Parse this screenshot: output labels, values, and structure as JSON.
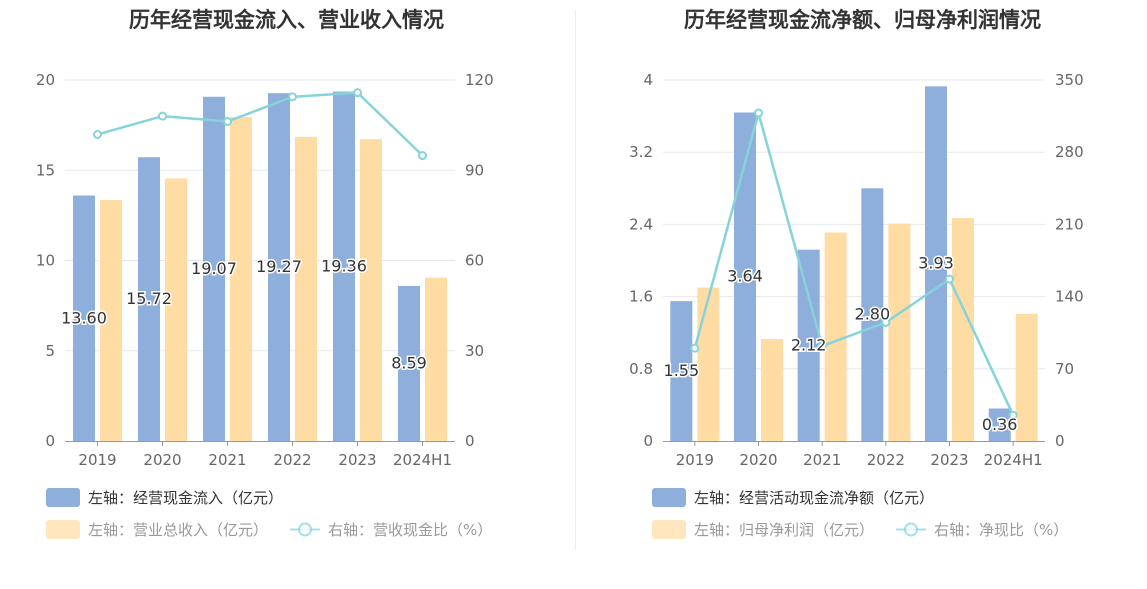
{
  "colors": {
    "bar_blue": "#8EAEDC",
    "bar_orange": "#FFDCA3",
    "line": "#86D3D9",
    "grid": "#E6E8EF",
    "axis_text": "#666666"
  },
  "charts": [
    {
      "title": "历年经营现金流入、营业收入情况",
      "legend": [
        {
          "label": "左轴：经营现金流入（亿元）",
          "faded": false
        },
        {
          "label": "左轴：营业总收入（亿元）",
          "faded": true
        },
        {
          "label": "右轴：营收现金比（%）",
          "faded": true
        }
      ]
    },
    {
      "title": "历年经营现金流净额、归母净利润情况",
      "legend": [
        {
          "label": "左轴：经营活动现金流净额（亿元）",
          "faded": false
        },
        {
          "label": "左轴：归母净利润（亿元）",
          "faded": true
        },
        {
          "label": "右轴：净现比（%）",
          "faded": true
        }
      ]
    }
  ],
  "chart_data": [
    {
      "type": "bar",
      "title": "历年经营现金流入、营业收入情况",
      "categories": [
        "2019",
        "2020",
        "2021",
        "2022",
        "2023",
        "2024H1"
      ],
      "y_left": {
        "min": 0,
        "max": 20,
        "ticks": [
          "0",
          "5",
          "10",
          "15",
          "20"
        ]
      },
      "y_right": {
        "min": 0,
        "max": 120,
        "ticks": [
          "0",
          "30",
          "60",
          "90",
          "120"
        ]
      },
      "series": [
        {
          "name": "经营现金流入（亿元）",
          "axis": "left",
          "kind": "bar",
          "values": [
            13.6,
            15.72,
            19.07,
            19.27,
            19.36,
            8.59
          ],
          "labels": [
            "13.60",
            "15.72",
            "19.07",
            "19.27",
            "19.36",
            "8.59"
          ]
        },
        {
          "name": "营业总收入（亿元）",
          "axis": "left",
          "kind": "bar",
          "values": [
            13.35,
            14.55,
            17.95,
            16.85,
            16.72,
            9.05
          ]
        },
        {
          "name": "营收现金比（%）",
          "axis": "right",
          "kind": "line",
          "values": [
            101.9,
            108.0,
            106.2,
            114.4,
            115.8,
            94.9
          ]
        }
      ],
      "grid": true,
      "legend_position": "bottom-left"
    },
    {
      "type": "bar",
      "title": "历年经营现金流净额、归母净利润情况",
      "categories": [
        "2019",
        "2020",
        "2021",
        "2022",
        "2023",
        "2024H1"
      ],
      "y_left": {
        "min": 0,
        "max": 4,
        "ticks": [
          "0",
          "0.8",
          "1.6",
          "2.4",
          "3.2",
          "4"
        ]
      },
      "y_right": {
        "min": 0,
        "max": 350,
        "ticks": [
          "0",
          "70",
          "140",
          "210",
          "280",
          "350"
        ]
      },
      "series": [
        {
          "name": "经营活动现金流净额（亿元）",
          "axis": "left",
          "kind": "bar",
          "values": [
            1.55,
            3.64,
            2.12,
            2.8,
            3.93,
            0.36
          ],
          "labels": [
            "1.55",
            "3.64",
            "2.12",
            "2.80",
            "3.93",
            "0.36"
          ]
        },
        {
          "name": "归母净利润（亿元）",
          "axis": "left",
          "kind": "bar",
          "values": [
            1.7,
            1.13,
            2.31,
            2.41,
            2.47,
            1.41
          ]
        },
        {
          "name": "净现比（%）",
          "axis": "right",
          "kind": "line",
          "values": [
            90,
            318,
            92,
            115,
            157,
            25
          ]
        }
      ],
      "grid": true,
      "legend_position": "bottom-left"
    }
  ]
}
